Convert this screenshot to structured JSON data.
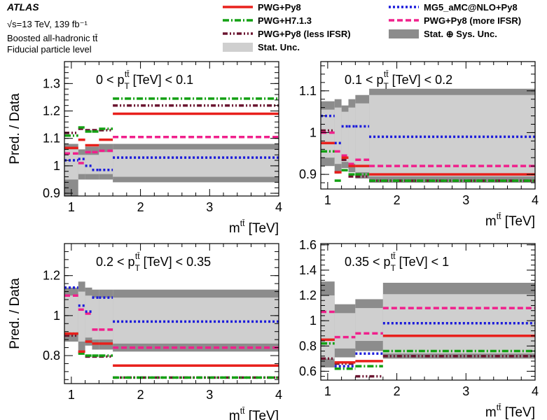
{
  "header": {
    "title": "ATLAS",
    "energy": "√s=13 TeV, 139 fb⁻¹",
    "selection": "Boosted all-hadronic tt̄",
    "level": "Fiducial particle level"
  },
  "legend": [
    {
      "key": "pwg_py8",
      "label": "PWG+Py8",
      "color": "#e8201c",
      "style": "solid"
    },
    {
      "key": "mg5",
      "label": "MG5_aMC@NLO+Py8",
      "color": "#1a1adb",
      "style": "dotted"
    },
    {
      "key": "pwg_h7",
      "label": "PWG+H7.1.3",
      "color": "#13a013",
      "style": "dashdot"
    },
    {
      "key": "more_ifsr",
      "label": "PWG+Py8 (more IFSR)",
      "color": "#f0208c",
      "style": "dashed"
    },
    {
      "key": "less_ifsr",
      "label": "PWG+Py8 (less IFSR)",
      "color": "#6b1530",
      "style": "dashdotdot"
    },
    {
      "key": "stat_sys",
      "label": "Stat. ⊕ Sys. Unc.",
      "color": "#8c8c8c",
      "style": "band"
    },
    {
      "key": "stat",
      "label": "Stat. Unc.",
      "color": "#cfcfcf",
      "style": "band"
    }
  ],
  "chart_data": [
    {
      "type": "line",
      "region_label": "0 < pT(tt̄) [TeV] < 0.1",
      "region_parts": [
        "0 < p",
        "T",
        "tt̄",
        " [TeV] < 0.1"
      ],
      "ylabel": "Pred. / Data",
      "xlabel": "m(tt̄) [TeV]",
      "xlim": [
        0.9,
        4.0
      ],
      "ylim": [
        0.89,
        1.38
      ],
      "xticks": [
        1,
        2,
        3,
        4
      ],
      "yticks": [
        0.9,
        1.0,
        1.1,
        1.2,
        1.3
      ],
      "ytick_labels": [
        "0.9",
        "1",
        "1.1",
        "1.2",
        "1.3"
      ],
      "bin_edges": [
        0.9,
        1.1,
        1.2,
        1.3,
        1.4,
        1.6,
        4.0
      ],
      "stat_sys_band": [
        [
          0.89,
          1.08
        ],
        [
          0.95,
          1.06
        ],
        [
          0.95,
          1.07
        ],
        [
          0.95,
          1.07
        ],
        [
          0.95,
          1.08
        ],
        [
          0.94,
          1.08
        ]
      ],
      "stat_band": [
        [
          0.95,
          1.06
        ],
        [
          0.97,
          1.04
        ],
        [
          0.97,
          1.04
        ],
        [
          0.97,
          1.04
        ],
        [
          0.97,
          1.05
        ],
        [
          0.96,
          1.06
        ]
      ],
      "series": [
        {
          "name": "PWG+Py8",
          "values": [
            1.065,
            1.095,
            1.075,
            1.075,
            1.095,
            1.19
          ]
        },
        {
          "name": "MG5_aMC@NLO+Py8",
          "values": [
            1.02,
            1.025,
            1.0,
            0.985,
            0.985,
            1.03
          ]
        },
        {
          "name": "PWG+H7.1.3",
          "values": [
            1.11,
            1.14,
            1.125,
            1.125,
            1.135,
            1.245
          ]
        },
        {
          "name": "PWG+Py8 (more IFSR)",
          "values": [
            1.045,
            1.01,
            1.05,
            1.05,
            1.055,
            1.105
          ]
        },
        {
          "name": "PWG+Py8 (less IFSR)",
          "values": [
            1.12,
            1.135,
            1.13,
            1.13,
            1.13,
            1.22
          ]
        }
      ]
    },
    {
      "type": "line",
      "region_label": "0.1 < pT(tt̄) [TeV] < 0.2",
      "region_parts": [
        "0.1 < p",
        "T",
        "tt̄",
        " [TeV] < 0.2"
      ],
      "ylabel": "",
      "xlabel": "m(tt̄) [TeV]",
      "xlim": [
        0.9,
        4.0
      ],
      "ylim": [
        0.865,
        1.17
      ],
      "xticks": [
        1,
        2,
        3,
        4
      ],
      "yticks": [
        0.9,
        1.0,
        1.1
      ],
      "ytick_labels": [
        "0.9",
        "1",
        "1.1"
      ],
      "bin_edges": [
        0.9,
        1.1,
        1.2,
        1.3,
        1.4,
        1.6,
        4.0
      ],
      "stat_sys_band": [
        [
          0.92,
          1.075
        ],
        [
          0.905,
          1.08
        ],
        [
          0.915,
          1.065
        ],
        [
          0.905,
          1.08
        ],
        [
          0.89,
          1.09
        ],
        [
          0.88,
          1.105
        ]
      ],
      "stat_band": [
        [
          0.94,
          1.055
        ],
        [
          0.925,
          1.06
        ],
        [
          0.93,
          1.05
        ],
        [
          0.925,
          1.06
        ],
        [
          0.905,
          1.07
        ],
        [
          0.895,
          1.09
        ]
      ],
      "series": [
        {
          "name": "PWG+Py8",
          "values": [
            0.975,
            0.905,
            0.94,
            0.92,
            0.92,
            0.9
          ]
        },
        {
          "name": "MG5_aMC@NLO+Py8",
          "values": [
            1.04,
            0.975,
            1.015,
            1.015,
            1.015,
            0.99
          ]
        },
        {
          "name": "PWG+H7.1.3",
          "values": [
            0.955,
            0.885,
            0.91,
            0.9,
            0.9,
            0.885
          ]
        },
        {
          "name": "PWG+Py8 (more IFSR)",
          "values": [
            1.0,
            0.955,
            0.945,
            0.925,
            0.935,
            0.92
          ]
        },
        {
          "name": "PWG+Py8 (less IFSR)",
          "values": [
            1.005,
            0.905,
            0.935,
            0.895,
            0.895,
            0.885
          ]
        }
      ]
    },
    {
      "type": "line",
      "region_label": "0.2 < pT(tt̄) [TeV] < 0.35",
      "region_parts": [
        "0.2 < p",
        "T",
        "tt̄",
        " [TeV] < 0.35"
      ],
      "ylabel": "Pred. / Data",
      "xlabel": "m(tt̄) [TeV]",
      "xlim": [
        0.9,
        4.0
      ],
      "ylim": [
        0.66,
        1.36
      ],
      "xticks": [
        1,
        2,
        3,
        4
      ],
      "yticks": [
        0.8,
        1.0,
        1.2
      ],
      "ytick_labels": [
        "0.8",
        "1",
        "1.2"
      ],
      "bin_edges": [
        0.9,
        1.1,
        1.2,
        1.3,
        1.4,
        1.6,
        4.0
      ],
      "stat_sys_band": [
        [
          0.87,
          1.14
        ],
        [
          0.82,
          1.17
        ],
        [
          0.85,
          1.14
        ],
        [
          0.83,
          1.13
        ],
        [
          0.83,
          1.13
        ],
        [
          0.82,
          1.13
        ]
      ],
      "stat_band": [
        [
          0.91,
          1.1
        ],
        [
          0.87,
          1.12
        ],
        [
          0.89,
          1.1
        ],
        [
          0.88,
          1.09
        ],
        [
          0.88,
          1.09
        ],
        [
          0.86,
          1.09
        ]
      ],
      "series": [
        {
          "name": "PWG+Py8",
          "values": [
            0.91,
            0.82,
            0.87,
            0.86,
            0.86,
            0.75
          ]
        },
        {
          "name": "MG5_aMC@NLO+Py8",
          "values": [
            1.14,
            1.05,
            1.02,
            1.09,
            1.09,
            0.97
          ]
        },
        {
          "name": "PWG+H7.1.3",
          "values": [
            0.91,
            0.81,
            0.8,
            0.8,
            0.8,
            0.69
          ]
        },
        {
          "name": "PWG+Py8 (more IFSR)",
          "values": [
            1.1,
            1.03,
            1.01,
            0.93,
            0.93,
            0.84
          ]
        },
        {
          "name": "PWG+Py8 (less IFSR)",
          "values": [
            0.9,
            0.815,
            0.795,
            0.795,
            0.795,
            0.69
          ]
        }
      ]
    },
    {
      "type": "line",
      "region_label": "0.35 < pT(tt̄) [TeV] < 1",
      "region_parts": [
        "0.35 < p",
        "T",
        "tt̄",
        " [TeV] < 1"
      ],
      "ylabel": "",
      "xlabel": "m(tt̄) [TeV]",
      "xlim": [
        0.9,
        4.0
      ],
      "ylim": [
        0.53,
        1.61
      ],
      "xticks": [
        1,
        2,
        3,
        4
      ],
      "yticks": [
        0.6,
        0.8,
        1.0,
        1.2,
        1.4,
        1.6
      ],
      "ytick_labels": [
        "0.6",
        "0.8",
        "1",
        "1.2",
        "1.4",
        "1.6"
      ],
      "bin_edges": [
        0.9,
        1.1,
        1.4,
        1.8,
        4.0
      ],
      "stat_sys_band": [
        [
          0.63,
          1.31
        ],
        [
          0.71,
          1.13
        ],
        [
          0.76,
          1.17
        ],
        [
          0.7,
          1.3
        ]
      ],
      "stat_band": [
        [
          0.7,
          1.2
        ],
        [
          0.78,
          1.06
        ],
        [
          0.84,
          1.1
        ],
        [
          0.74,
          1.21
        ]
      ],
      "series": [
        {
          "name": "PWG+Py8",
          "values": [
            0.85,
            0.67,
            0.68,
            0.88
          ]
        },
        {
          "name": "MG5_aMC@NLO+Py8",
          "values": [
            0.85,
            0.64,
            0.74,
            0.98
          ]
        },
        {
          "name": "PWG+H7.1.3",
          "values": [
            0.82,
            0.62,
            0.64,
            0.76
          ]
        },
        {
          "name": "PWG+Py8 (more IFSR)",
          "values": [
            1.07,
            0.87,
            0.9,
            1.1
          ]
        },
        {
          "name": "PWG+Py8 (less IFSR)",
          "values": [
            0.7,
            0.66,
            0.56,
            0.72
          ]
        }
      ]
    }
  ]
}
